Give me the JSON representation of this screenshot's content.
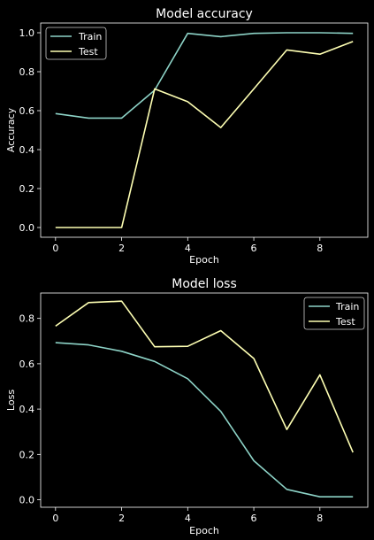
{
  "chart_data": [
    {
      "type": "line",
      "title": "Model accuracy",
      "xlabel": "Epoch",
      "ylabel": "Accuracy",
      "x": [
        0,
        1,
        2,
        3,
        4,
        5,
        6,
        7,
        8,
        9
      ],
      "xlim": [
        -0.45,
        9.45
      ],
      "ylim": [
        -0.05,
        1.05
      ],
      "xticks": [
        0,
        2,
        4,
        6,
        8
      ],
      "yticks": [
        0.0,
        0.2,
        0.4,
        0.6,
        0.8,
        1.0
      ],
      "ytick_labels": [
        "0.0",
        "0.2",
        "0.4",
        "0.6",
        "0.8",
        "1.0"
      ],
      "grid": false,
      "legend_position": "top-left",
      "series": [
        {
          "name": "Train",
          "color": "#8dd3c7",
          "values": [
            0.585,
            0.562,
            0.562,
            0.705,
            0.997,
            0.98,
            0.997,
            1.0,
            1.0,
            0.997
          ]
        },
        {
          "name": "Test",
          "color": "#feffb3",
          "values": [
            0.0,
            0.0,
            0.0,
            0.712,
            0.646,
            0.513,
            0.712,
            0.912,
            0.89,
            0.955
          ]
        }
      ]
    },
    {
      "type": "line",
      "title": "Model loss",
      "xlabel": "Epoch",
      "ylabel": "Loss",
      "x": [
        0,
        1,
        2,
        3,
        4,
        5,
        6,
        7,
        8,
        9
      ],
      "xlim": [
        -0.45,
        9.45
      ],
      "ylim": [
        -0.033,
        0.912
      ],
      "xticks": [
        0,
        2,
        4,
        6,
        8
      ],
      "yticks": [
        0.0,
        0.2,
        0.4,
        0.6,
        0.8
      ],
      "ytick_labels": [
        "0.0",
        "0.2",
        "0.4",
        "0.6",
        "0.8"
      ],
      "grid": false,
      "legend_position": "top-right",
      "series": [
        {
          "name": "Train",
          "color": "#8dd3c7",
          "values": [
            0.693,
            0.683,
            0.655,
            0.61,
            0.534,
            0.39,
            0.172,
            0.046,
            0.013,
            0.013
          ]
        },
        {
          "name": "Test",
          "color": "#feffb3",
          "values": [
            0.766,
            0.87,
            0.876,
            0.675,
            0.677,
            0.746,
            0.623,
            0.31,
            0.551,
            0.209
          ]
        }
      ]
    }
  ]
}
